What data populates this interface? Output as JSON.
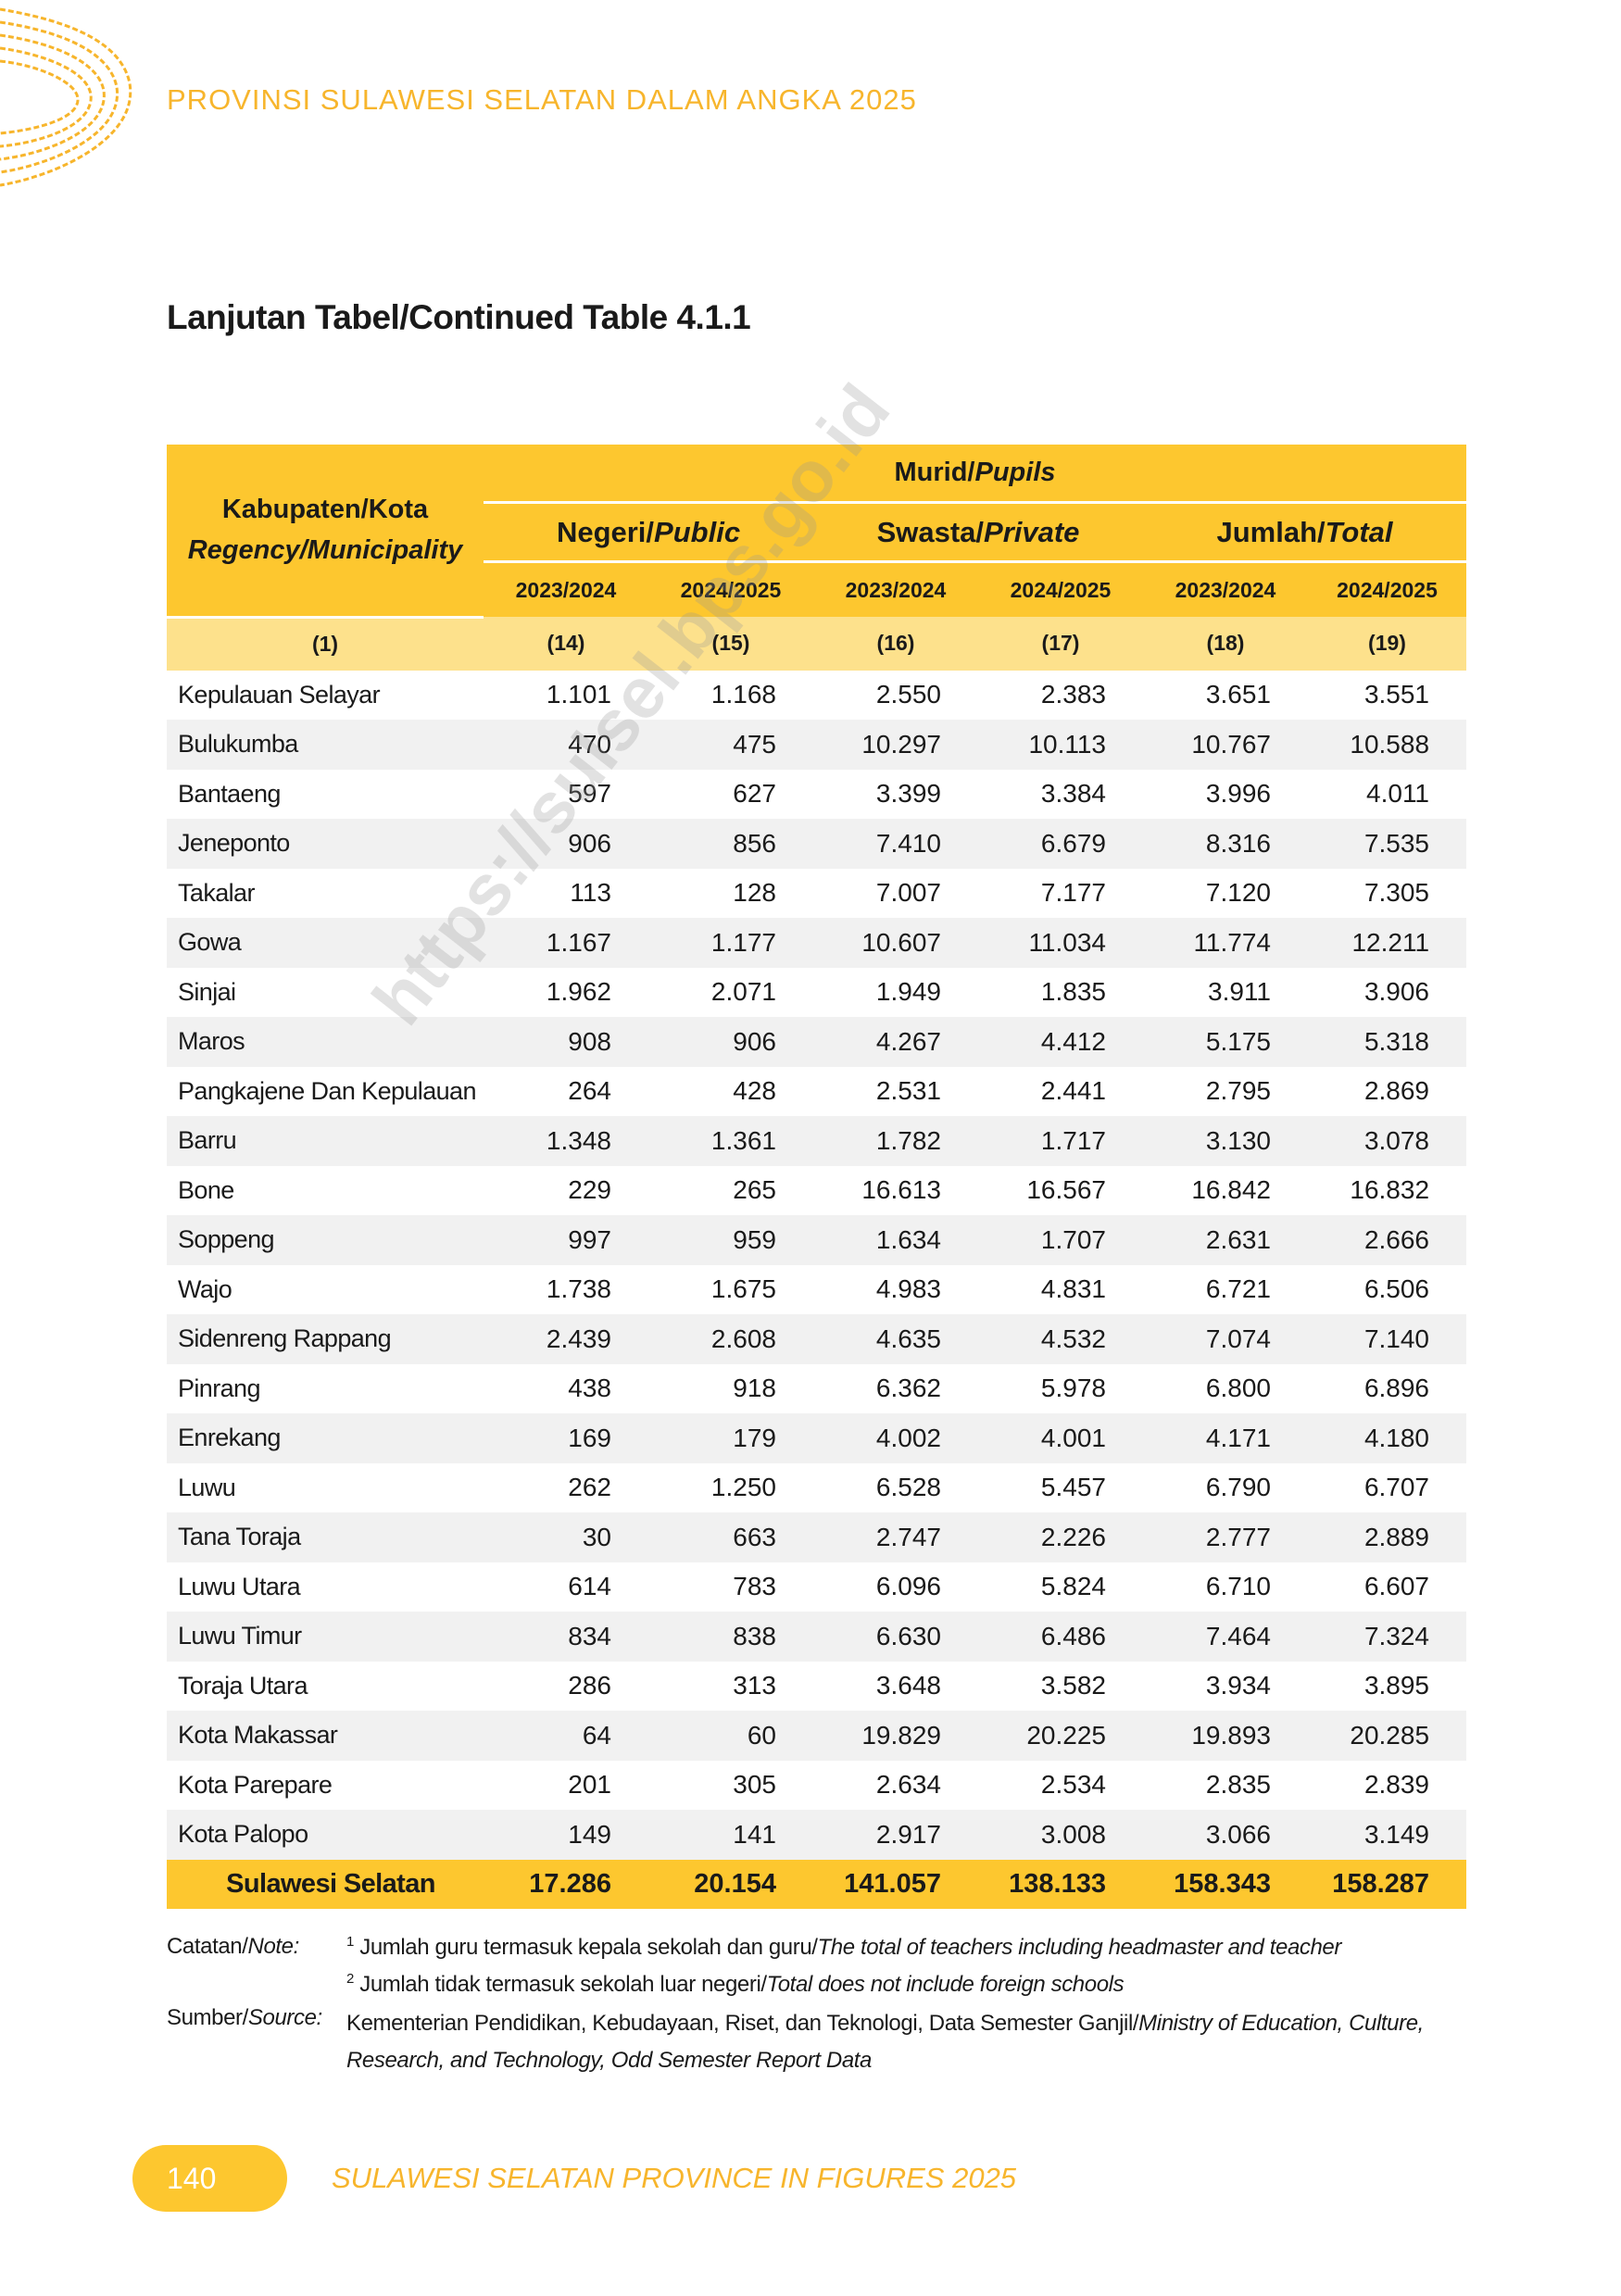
{
  "header": {
    "running_title": "PROVINSI SULAWESI SELATAN DALAM ANGKA 2025"
  },
  "title": "Lanjutan Tabel/Continued Table 4.1.1",
  "watermark": "https://sulsel.bps.go.id",
  "table": {
    "region_header": {
      "text": "Kabupaten/Kota",
      "italic": "Regency/Municipality"
    },
    "group_header": {
      "text": "Murid/",
      "italic": "Pupils"
    },
    "sub_headers": [
      {
        "text": "Negeri/",
        "italic": "Public"
      },
      {
        "text": "Swasta/",
        "italic": "Private"
      },
      {
        "text": "Jumlah/",
        "italic": "Total"
      }
    ],
    "years": [
      "2023/2024",
      "2024/2025",
      "2023/2024",
      "2024/2025",
      "2023/2024",
      "2024/2025"
    ],
    "column_numbers": [
      "(1)",
      "(14)",
      "(15)",
      "(16)",
      "(17)",
      "(18)",
      "(19)"
    ],
    "rows": [
      [
        "Kepulauan Selayar",
        "1.101",
        "1.168",
        "2.550",
        "2.383",
        "3.651",
        "3.551"
      ],
      [
        "Bulukumba",
        "470",
        "475",
        "10.297",
        "10.113",
        "10.767",
        "10.588"
      ],
      [
        "Bantaeng",
        "597",
        "627",
        "3.399",
        "3.384",
        "3.996",
        "4.011"
      ],
      [
        "Jeneponto",
        "906",
        "856",
        "7.410",
        "6.679",
        "8.316",
        "7.535"
      ],
      [
        "Takalar",
        "113",
        "128",
        "7.007",
        "7.177",
        "7.120",
        "7.305"
      ],
      [
        "Gowa",
        "1.167",
        "1.177",
        "10.607",
        "11.034",
        "11.774",
        "12.211"
      ],
      [
        "Sinjai",
        "1.962",
        "2.071",
        "1.949",
        "1.835",
        "3.911",
        "3.906"
      ],
      [
        "Maros",
        "908",
        "906",
        "4.267",
        "4.412",
        "5.175",
        "5.318"
      ],
      [
        "Pangkajene Dan  Kepulauan",
        "264",
        "428",
        "2.531",
        "2.441",
        "2.795",
        "2.869"
      ],
      [
        "Barru",
        "1.348",
        "1.361",
        "1.782",
        "1.717",
        "3.130",
        "3.078"
      ],
      [
        "Bone",
        "229",
        "265",
        "16.613",
        "16.567",
        "16.842",
        "16.832"
      ],
      [
        "Soppeng",
        "997",
        "959",
        "1.634",
        "1.707",
        "2.631",
        "2.666"
      ],
      [
        "Wajo",
        "1.738",
        "1.675",
        "4.983",
        "4.831",
        "6.721",
        "6.506"
      ],
      [
        "Sidenreng Rappang",
        "2.439",
        "2.608",
        "4.635",
        "4.532",
        "7.074",
        "7.140"
      ],
      [
        "Pinrang",
        "438",
        "918",
        "6.362",
        "5.978",
        "6.800",
        "6.896"
      ],
      [
        "Enrekang",
        "169",
        "179",
        "4.002",
        "4.001",
        "4.171",
        "4.180"
      ],
      [
        "Luwu",
        "262",
        "1.250",
        "6.528",
        "5.457",
        "6.790",
        "6.707"
      ],
      [
        "Tana Toraja",
        "30",
        "663",
        "2.747",
        "2.226",
        "2.777",
        "2.889"
      ],
      [
        "Luwu Utara",
        "614",
        "783",
        "6.096",
        "5.824",
        "6.710",
        "6.607"
      ],
      [
        "Luwu Timur",
        "834",
        "838",
        "6.630",
        "6.486",
        "7.464",
        "7.324"
      ],
      [
        "Toraja Utara",
        "286",
        "313",
        "3.648",
        "3.582",
        "3.934",
        "3.895"
      ],
      [
        "Kota Makassar",
        "64",
        "60",
        "19.829",
        "20.225",
        "19.893",
        "20.285"
      ],
      [
        "Kota Parepare",
        "201",
        "305",
        "2.634",
        "2.534",
        "2.835",
        "2.839"
      ],
      [
        "Kota Palopo",
        "149",
        "141",
        "2.917",
        "3.008",
        "3.066",
        "3.149"
      ]
    ],
    "total": [
      "Sulawesi Selatan",
      "17.286",
      "20.154",
      "141.057",
      "138.133",
      "158.343",
      "158.287"
    ]
  },
  "notes": {
    "label": {
      "text": "Catatan/",
      "italic": "Note:"
    },
    "items": [
      {
        "marker": "1",
        "text": "Jumlah guru termasuk kepala sekolah dan guru/",
        "italic": "The total of teachers including headmaster and teacher"
      },
      {
        "marker": "2",
        "text": "Jumlah tidak termasuk sekolah luar negeri/",
        "italic": "Total does not include foreign schools"
      }
    ]
  },
  "source": {
    "label": {
      "text": "Sumber/",
      "italic": "Source:"
    },
    "text": "Kementerian Pendidikan, Kebudayaan, Riset, dan Teknologi, Data Semester Ganjil/",
    "italic": "Ministry of Education, Culture, Research, and Technology, Odd Semester Report Data"
  },
  "footer": {
    "page_number": "140",
    "running_title": "SULAWESI SELATAN PROVINCE IN FIGURES 2025"
  }
}
